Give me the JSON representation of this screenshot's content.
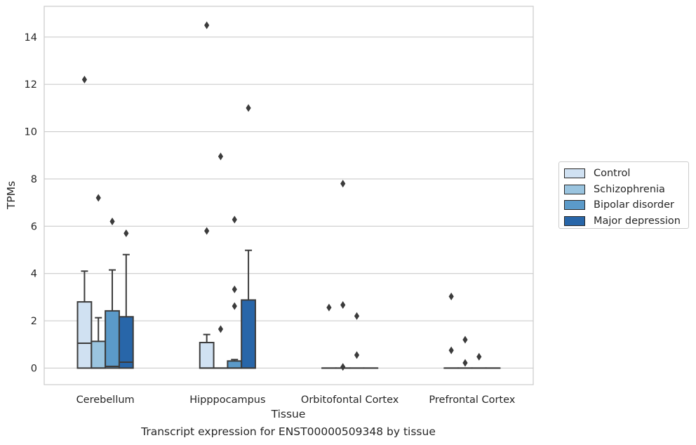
{
  "chart_data": {
    "type": "box",
    "title": "",
    "footer": "Transcript expression for ENST00000509348 by tissue",
    "xlabel": "Tissue",
    "ylabel": "TPMs",
    "ylim": [
      -0.7,
      15.3
    ],
    "yticks": [
      0,
      2,
      4,
      6,
      8,
      10,
      12,
      14
    ],
    "grid": "horizontal",
    "legend_position": "right",
    "categories": [
      "Cerebellum",
      "Hipppocampus",
      "Orbitofontal Cortex",
      "Prefrontal Cortex"
    ],
    "series": [
      {
        "name": "Control",
        "color": "#d0e1f2",
        "boxes": [
          {
            "q1": 0,
            "median": 1.05,
            "q3": 2.8,
            "whisker_low": 0,
            "whisker_high": 4.1,
            "outliers": [
              12.2
            ]
          },
          {
            "q1": 0,
            "median": 0,
            "q3": 1.08,
            "whisker_low": 0,
            "whisker_high": 1.42,
            "outliers": [
              5.8,
              14.5
            ]
          },
          {
            "q1": 0,
            "median": 0,
            "q3": 0,
            "whisker_low": 0,
            "whisker_high": 0,
            "outliers": [
              2.56
            ]
          },
          {
            "q1": 0,
            "median": 0,
            "q3": 0,
            "whisker_low": 0,
            "whisker_high": 0,
            "outliers": [
              3.03,
              0.75
            ]
          }
        ]
      },
      {
        "name": "Schizophrenia",
        "color": "#9ac4df",
        "boxes": [
          {
            "q1": 0,
            "median": 0,
            "q3": 1.13,
            "whisker_low": 0,
            "whisker_high": 2.13,
            "outliers": [
              7.2
            ]
          },
          {
            "q1": 0,
            "median": 0,
            "q3": 0,
            "whisker_low": 0,
            "whisker_high": 0,
            "outliers": [
              1.65,
              8.95
            ]
          },
          {
            "q1": 0,
            "median": 0,
            "q3": 0,
            "whisker_low": 0,
            "whisker_high": 0,
            "outliers": [
              2.67,
              7.8,
              0.05
            ]
          },
          {
            "q1": 0,
            "median": 0,
            "q3": 0,
            "whisker_low": 0,
            "whisker_high": 0,
            "outliers": [
              1.2,
              0.22
            ]
          }
        ]
      },
      {
        "name": "Bipolar disorder",
        "color": "#5b9ac9",
        "boxes": [
          {
            "q1": 0,
            "median": 0.07,
            "q3": 2.42,
            "whisker_low": 0,
            "whisker_high": 4.15,
            "outliers": [
              6.2
            ]
          },
          {
            "q1": 0,
            "median": 0,
            "q3": 0.3,
            "whisker_low": 0,
            "whisker_high": 0.36,
            "outliers": [
              2.62,
              3.33,
              6.28
            ]
          },
          {
            "q1": 0,
            "median": 0,
            "q3": 0,
            "whisker_low": 0,
            "whisker_high": 0,
            "outliers": [
              2.2,
              0.55
            ]
          },
          {
            "q1": 0,
            "median": 0,
            "q3": 0,
            "whisker_low": 0,
            "whisker_high": 0,
            "outliers": [
              0.48
            ]
          }
        ]
      },
      {
        "name": "Major depression",
        "color": "#2866a9",
        "boxes": [
          {
            "q1": 0,
            "median": 0.25,
            "q3": 2.17,
            "whisker_low": 0,
            "whisker_high": 4.8,
            "outliers": [
              5.7
            ]
          },
          {
            "q1": 0,
            "median": 0,
            "q3": 2.88,
            "whisker_low": 0,
            "whisker_high": 4.98,
            "outliers": [
              11.0
            ]
          },
          {
            "q1": 0,
            "median": 0,
            "q3": 0,
            "whisker_low": 0,
            "whisker_high": 0,
            "outliers": []
          },
          {
            "q1": 0,
            "median": 0,
            "q3": 0,
            "whisker_low": 0,
            "whisker_high": 0,
            "outliers": []
          }
        ]
      }
    ]
  }
}
